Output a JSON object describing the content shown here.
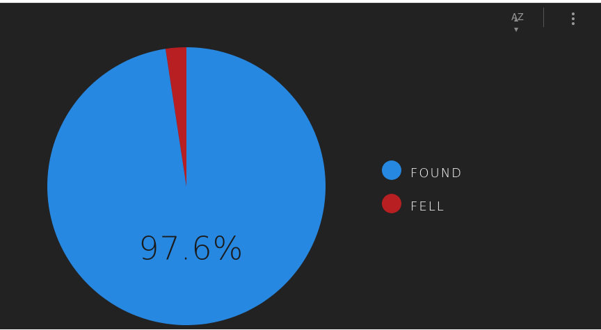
{
  "toolbar": {
    "sort_icon": "az-sort-icon",
    "sort_label": "AZ",
    "menu_icon": "more-vert-icon"
  },
  "chart_data": {
    "type": "pie",
    "categories": [
      "found",
      "fell"
    ],
    "values": [
      97.6,
      2.4
    ],
    "colors": [
      "#2788e2",
      "#b81f23"
    ],
    "data_labels": [
      "97.6%",
      ""
    ],
    "label_color": "#1a1a1a",
    "legend_position": "right"
  }
}
